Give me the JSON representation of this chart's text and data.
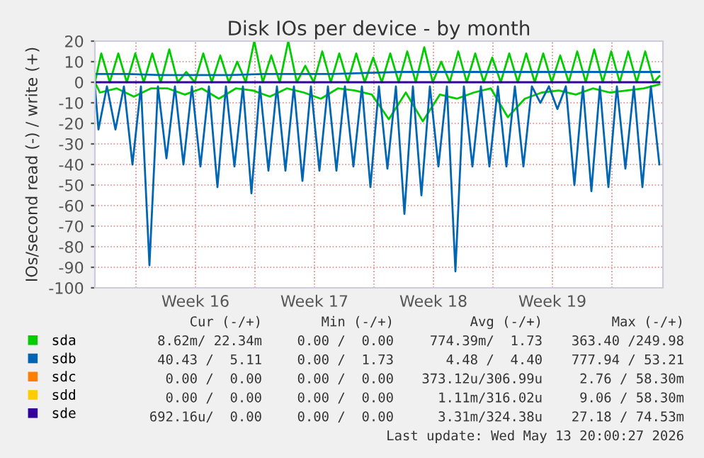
{
  "chart_data": {
    "type": "line",
    "title": "Disk IOs per device - by month",
    "ylabel": "IOs/second read (-) / write (+)",
    "xlim": [
      "2026-04-10T14:00",
      "2026-05-14T00:00"
    ],
    "ylim": [
      -100,
      20
    ],
    "yticks": [
      -100,
      -90,
      -80,
      -70,
      -60,
      -50,
      -40,
      -30,
      -20,
      -10,
      0,
      10,
      20
    ],
    "xticks": [
      {
        "value": "2026-04-13T00:00",
        "label": null
      },
      {
        "value": "2026-04-16T12:00",
        "label": "Week 16"
      },
      {
        "value": "2026-04-20T00:00",
        "label": null
      },
      {
        "value": "2026-04-23T12:00",
        "label": "Week 17"
      },
      {
        "value": "2026-04-27T00:00",
        "label": null
      },
      {
        "value": "2026-04-30T12:00",
        "label": "Week 18"
      },
      {
        "value": "2026-05-04T00:00",
        "label": null
      },
      {
        "value": "2026-05-07T12:00",
        "label": "Week 19"
      },
      {
        "value": "2026-05-11T00:00",
        "label": null
      }
    ],
    "grid": true,
    "legend": "bottom",
    "marker": "none",
    "line_style": "solid",
    "series": [
      {
        "name": "sda",
        "color": "#00cc00",
        "x": [
          "2026-04-10T14:00",
          "2026-04-10T23:00",
          "2026-04-11T11:00",
          "2026-04-11T23:00",
          "2026-04-12T11:00",
          "2026-04-12T23:00",
          "2026-04-13T11:00",
          "2026-04-13T23:00",
          "2026-04-14T11:00",
          "2026-04-14T23:00",
          "2026-04-15T11:00",
          "2026-04-15T23:00",
          "2026-04-16T11:00",
          "2026-04-16T23:00",
          "2026-04-17T11:00",
          "2026-04-17T23:00",
          "2026-04-18T11:00",
          "2026-04-18T23:00",
          "2026-04-19T11:00",
          "2026-04-19T23:00",
          "2026-04-20T11:00",
          "2026-04-20T23:00",
          "2026-04-21T11:00",
          "2026-04-21T23:00",
          "2026-04-22T11:00",
          "2026-04-22T23:00",
          "2026-04-23T11:00",
          "2026-04-23T23:00",
          "2026-04-24T11:00",
          "2026-04-24T23:00",
          "2026-04-25T11:00",
          "2026-04-25T23:00",
          "2026-04-26T11:00",
          "2026-04-26T23:00",
          "2026-04-27T11:00",
          "2026-04-27T23:00",
          "2026-04-28T11:00",
          "2026-04-28T23:00",
          "2026-04-29T11:00",
          "2026-04-29T23:00",
          "2026-04-30T11:00",
          "2026-04-30T23:00",
          "2026-05-01T11:00",
          "2026-05-01T23:00",
          "2026-05-02T11:00",
          "2026-05-02T23:00",
          "2026-05-03T11:00",
          "2026-05-03T23:00",
          "2026-05-04T11:00",
          "2026-05-04T23:00",
          "2026-05-05T11:00",
          "2026-05-05T23:00",
          "2026-05-06T11:00",
          "2026-05-06T23:00",
          "2026-05-07T11:00",
          "2026-05-07T23:00",
          "2026-05-08T11:00",
          "2026-05-08T23:00",
          "2026-05-09T11:00",
          "2026-05-09T23:00",
          "2026-05-10T11:00",
          "2026-05-10T23:00",
          "2026-05-11T11:00",
          "2026-05-11T23:00",
          "2026-05-12T11:00",
          "2026-05-12T23:00",
          "2026-05-13T11:00",
          "2026-05-13T19:00"
        ],
        "values": [
          0,
          14,
          0,
          14,
          0,
          14,
          0,
          14,
          0,
          16,
          0,
          5,
          0,
          14,
          0,
          13,
          0,
          10,
          0,
          20,
          0,
          13,
          0,
          20,
          0,
          8,
          0,
          15,
          0,
          14,
          0,
          14,
          0,
          12,
          0,
          14,
          0,
          15,
          0,
          17,
          0,
          10,
          0,
          15,
          0,
          14,
          0,
          12,
          0,
          14,
          0,
          14,
          0,
          14,
          0,
          13,
          0,
          15,
          0,
          16,
          0,
          15,
          0,
          15,
          0,
          15,
          0,
          3
        ]
      },
      {
        "color": "#00cc00",
        "x": [
          "2026-04-10T14:00",
          "2026-04-10T21:00",
          "2026-04-11T21:00",
          "2026-04-12T21:00",
          "2026-04-13T21:00",
          "2026-04-14T21:00",
          "2026-04-15T21:00",
          "2026-04-16T21:00",
          "2026-04-17T21:00",
          "2026-04-18T21:00",
          "2026-04-19T21:00",
          "2026-04-20T21:00",
          "2026-04-21T21:00",
          "2026-04-22T21:00",
          "2026-04-23T21:00",
          "2026-04-24T21:00",
          "2026-04-25T21:00",
          "2026-04-26T21:00",
          "2026-04-27T21:00",
          "2026-04-28T21:00",
          "2026-04-29T21:00",
          "2026-04-30T21:00",
          "2026-05-01T21:00",
          "2026-05-02T21:00",
          "2026-05-03T21:00",
          "2026-05-04T21:00",
          "2026-05-05T21:00",
          "2026-05-06T21:00",
          "2026-05-07T21:00",
          "2026-05-08T21:00",
          "2026-05-09T21:00",
          "2026-05-10T21:00",
          "2026-05-11T21:00",
          "2026-05-12T21:00",
          "2026-05-13T19:00"
        ],
        "values": [
          0,
          -5,
          -3,
          -7,
          -3,
          -3,
          -6,
          -3,
          -8,
          -3,
          -4,
          -7,
          -3,
          -5,
          -8,
          -3,
          -4,
          -6,
          -18,
          -5,
          -19,
          -6,
          -8,
          -5,
          -3,
          -17,
          -8,
          -5,
          -4,
          -6,
          -3,
          -5,
          -4,
          -3,
          -1
        ]
      },
      {
        "name": "sdb",
        "color": "#0066b3",
        "x": [
          "2026-04-10T14:00",
          "2026-04-12T12:00",
          "2026-04-14T12:00",
          "2026-04-16T12:00",
          "2026-04-18T12:00",
          "2026-04-20T12:00",
          "2026-04-22T12:00",
          "2026-04-24T12:00",
          "2026-04-26T12:00",
          "2026-04-28T12:00",
          "2026-04-30T12:00",
          "2026-05-02T12:00",
          "2026-05-04T12:00",
          "2026-05-06T12:00",
          "2026-05-08T12:00",
          "2026-05-10T12:00",
          "2026-05-12T12:00",
          "2026-05-13T19:00"
        ],
        "values": [
          4,
          4,
          3.5,
          3.5,
          3.5,
          4,
          4,
          4,
          4.5,
          5,
          5,
          5,
          5,
          5,
          5,
          5,
          5,
          5
        ]
      },
      {
        "color": "#0066b3",
        "x": [
          "2026-04-10T14:00",
          "2026-04-10T19:00",
          "2026-04-11T07:00",
          "2026-04-11T19:00",
          "2026-04-12T07:00",
          "2026-04-12T19:00",
          "2026-04-13T07:00",
          "2026-04-13T19:00",
          "2026-04-14T07:00",
          "2026-04-14T19:00",
          "2026-04-15T07:00",
          "2026-04-15T19:00",
          "2026-04-16T07:00",
          "2026-04-16T19:00",
          "2026-04-17T07:00",
          "2026-04-17T19:00",
          "2026-04-18T07:00",
          "2026-04-18T19:00",
          "2026-04-19T07:00",
          "2026-04-19T19:00",
          "2026-04-20T07:00",
          "2026-04-20T19:00",
          "2026-04-21T07:00",
          "2026-04-21T19:00",
          "2026-04-22T07:00",
          "2026-04-22T19:00",
          "2026-04-23T07:00",
          "2026-04-23T19:00",
          "2026-04-24T07:00",
          "2026-04-24T19:00",
          "2026-04-25T07:00",
          "2026-04-25T19:00",
          "2026-04-26T07:00",
          "2026-04-26T19:00",
          "2026-04-27T07:00",
          "2026-04-27T19:00",
          "2026-04-28T07:00",
          "2026-04-28T19:00",
          "2026-04-29T07:00",
          "2026-04-29T19:00",
          "2026-04-30T07:00",
          "2026-04-30T19:00",
          "2026-05-01T07:00",
          "2026-05-01T19:00",
          "2026-05-02T07:00",
          "2026-05-02T19:00",
          "2026-05-03T07:00",
          "2026-05-03T19:00",
          "2026-05-04T07:00",
          "2026-05-04T19:00",
          "2026-05-05T07:00",
          "2026-05-05T19:00",
          "2026-05-06T07:00",
          "2026-05-06T19:00",
          "2026-05-07T07:00",
          "2026-05-07T19:00",
          "2026-05-08T07:00",
          "2026-05-08T19:00",
          "2026-05-09T07:00",
          "2026-05-09T19:00",
          "2026-05-10T07:00",
          "2026-05-10T19:00",
          "2026-05-11T07:00",
          "2026-05-11T19:00",
          "2026-05-12T07:00",
          "2026-05-12T19:00",
          "2026-05-13T07:00",
          "2026-05-13T19:00"
        ],
        "values": [
          -2,
          -23,
          -2,
          -23,
          -2,
          -40,
          -2,
          -89,
          -2,
          -37,
          -2,
          -40,
          -2,
          -41,
          -2,
          -51,
          -2,
          -41,
          -2,
          -54,
          -2,
          -43,
          -2,
          -43,
          -2,
          -48,
          -2,
          -43,
          -2,
          -43,
          -2,
          -41,
          -2,
          -51,
          -2,
          -42,
          -2,
          -64,
          -2,
          -55,
          -2,
          -41,
          -2,
          -92,
          -2,
          -41,
          -2,
          -41,
          -2,
          -41,
          -2,
          -41,
          -2,
          -10,
          -2,
          -13,
          -2,
          -50,
          -2,
          -53,
          -2,
          -51,
          -2,
          -42,
          -2,
          -51,
          -2,
          -40
        ]
      },
      {
        "name": "sdc",
        "color": "#ff8000"
      },
      {
        "name": "sdd",
        "color": "#ffcc00"
      },
      {
        "name": "sde",
        "color": "#330099",
        "x": [
          "2026-04-10T14:00",
          "2026-05-13T19:00"
        ],
        "values": [
          0,
          0
        ]
      }
    ],
    "annotations": [
      "Cur (-/+)",
      "Min (-/+)",
      "Avg (-/+)",
      "Max (-/+)",
      "8.62m/ 22.34m",
      "0.00 /  0.00",
      "774.39m/  1.73",
      "363.40 /249.98",
      "40.43 /  5.11",
      "0.00 /  1.73",
      "4.48 /  4.40",
      "777.94 / 53.21",
      "0.00 /  0.00",
      "0.00 /  0.00",
      "373.12u/306.99u",
      "2.76 / 58.30m",
      "0.00 /  0.00",
      "0.00 /  0.00",
      "1.11m/316.02u",
      "9.06 / 58.30m",
      "692.16u/  0.00",
      "0.00 /  0.00",
      "3.31m/324.38u",
      "27.18 / 74.53m",
      "Last update: Wed May 13 20:00:27 2026"
    ]
  }
}
